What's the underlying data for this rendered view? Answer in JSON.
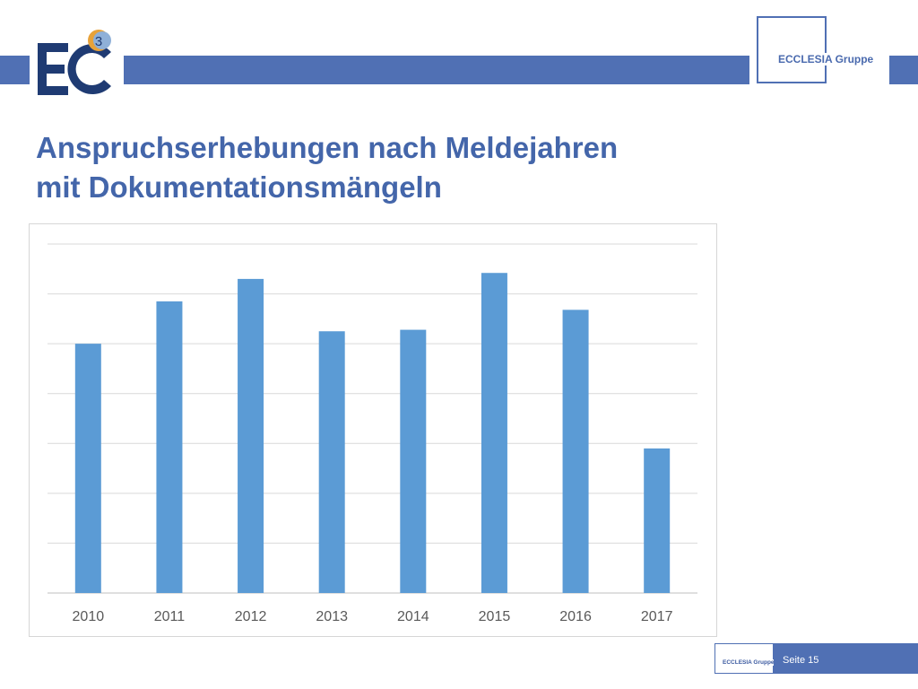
{
  "header": {
    "logo_badge": "3",
    "brand": "ECCLESIA Gruppe"
  },
  "slide": {
    "title_line1": "Anspruchserhebungen nach Meldejahren",
    "title_line2": "mit Dokumentationsmängeln"
  },
  "footer": {
    "brand": "ECCLESIA Gruppe",
    "page_label": "Seite 15"
  },
  "colors": {
    "band": "#5070b4",
    "title": "#4466aa",
    "bar": "#5b9bd5",
    "tick_label": "#595959",
    "grid": "#d9d9d9"
  },
  "chart_data": {
    "type": "bar",
    "categories": [
      "2010",
      "2011",
      "2012",
      "2013",
      "2014",
      "2015",
      "2016",
      "2017"
    ],
    "values": [
      5.0,
      5.85,
      6.3,
      5.25,
      5.28,
      6.42,
      5.68,
      2.9
    ],
    "ylim": [
      0,
      7
    ],
    "y_ticks_shown": false,
    "grid": true,
    "legend": false,
    "title": "",
    "xlabel": "",
    "ylabel": ""
  }
}
